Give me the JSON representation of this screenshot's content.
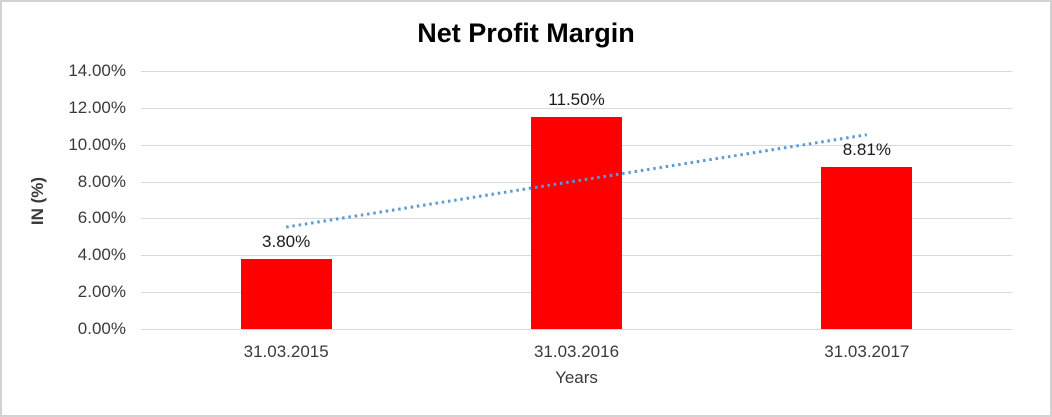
{
  "chart_data": {
    "type": "bar",
    "title": "Net Profit Margin",
    "xlabel": "Years",
    "ylabel": "IN (%)",
    "categories": [
      "31.03.2015",
      "31.03.2016",
      "31.03.2017"
    ],
    "values": [
      3.8,
      11.5,
      8.81
    ],
    "data_labels": [
      "3.80%",
      "11.50%",
      "8.81%"
    ],
    "y_ticks": [
      "0.00%",
      "2.00%",
      "4.00%",
      "6.00%",
      "8.00%",
      "10.00%",
      "12.00%",
      "14.00%"
    ],
    "ylim": [
      0,
      14
    ],
    "y_tick_step": 2,
    "grid": true,
    "legend": "none",
    "bar_color": "#ff0000",
    "gridline_color": "#d9d9d9",
    "trendline": {
      "type": "linear",
      "style": "dotted",
      "color": "#5b9bd5",
      "start_value": 5.53,
      "end_value": 10.54
    }
  }
}
